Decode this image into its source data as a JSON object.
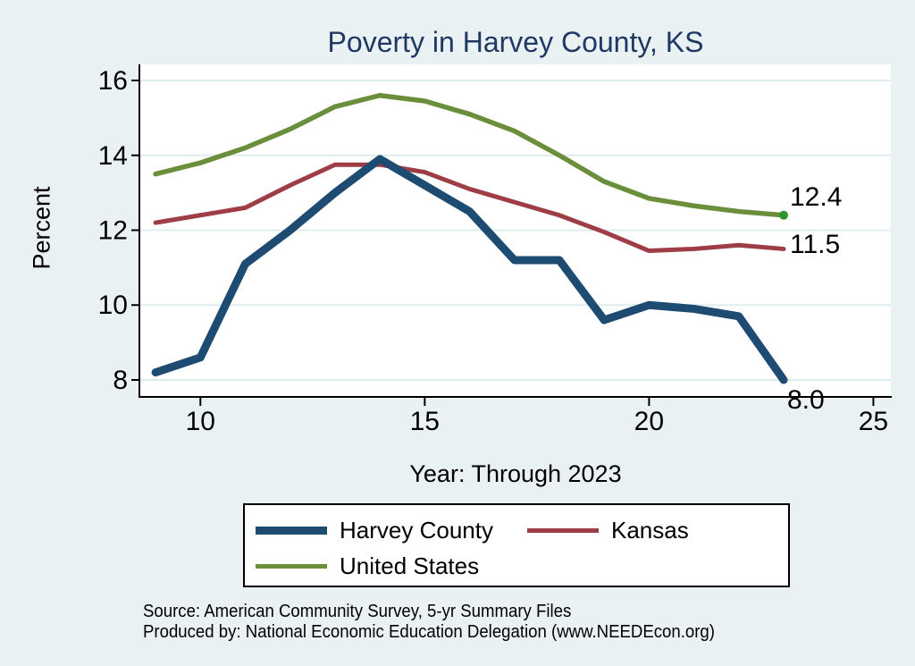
{
  "page": {
    "background_color": "#eaf1f3",
    "plot_background_color": "#ffffff",
    "gridline_color": "#dfecef",
    "axis_color": "#000000",
    "title_color": "#1f3864"
  },
  "chart_data": {
    "type": "line",
    "title": "Poverty in Harvey County, KS",
    "xlabel": "Year: Through 2023",
    "ylabel": "Percent",
    "x": [
      9,
      10,
      11,
      12,
      13,
      14,
      15,
      16,
      17,
      18,
      19,
      20,
      21,
      22,
      23
    ],
    "x_ticks": [
      10,
      15,
      20,
      25
    ],
    "y_ticks": [
      8,
      10,
      12,
      14,
      16
    ],
    "xlim": [
      8.66,
      25.39
    ],
    "ylim": [
      7.57,
      16.43
    ],
    "grid": true,
    "legend_position": "below-chart",
    "series": [
      {
        "name": "Harvey County",
        "color": "#1e4b71",
        "line_width": 9,
        "values": [
          8.2,
          8.6,
          11.1,
          12.0,
          13.0,
          13.9,
          13.2,
          12.5,
          11.2,
          11.2,
          9.6,
          10.0,
          9.9,
          9.7,
          8.0
        ],
        "end_label": "8.0"
      },
      {
        "name": "Kansas",
        "color": "#9e3d46",
        "line_width": 5,
        "values": [
          12.2,
          12.4,
          12.6,
          13.2,
          13.75,
          13.75,
          13.55,
          13.1,
          12.75,
          12.4,
          11.95,
          11.45,
          11.5,
          11.6,
          11.5
        ],
        "end_label": "11.5"
      },
      {
        "name": "United States",
        "color": "#6b8e3b",
        "line_width": 5.5,
        "values": [
          13.5,
          13.8,
          14.2,
          14.7,
          15.3,
          15.6,
          15.45,
          15.1,
          14.65,
          14.0,
          13.3,
          12.85,
          12.65,
          12.5,
          12.4
        ],
        "end_label": "12.4",
        "end_marker_color": "#2c972c"
      }
    ],
    "source_line1": "Source: American Community Survey, 5-yr Summary Files",
    "source_line2": "Produced by: National Economic Education Delegation (www.NEEDEcon.org)"
  }
}
